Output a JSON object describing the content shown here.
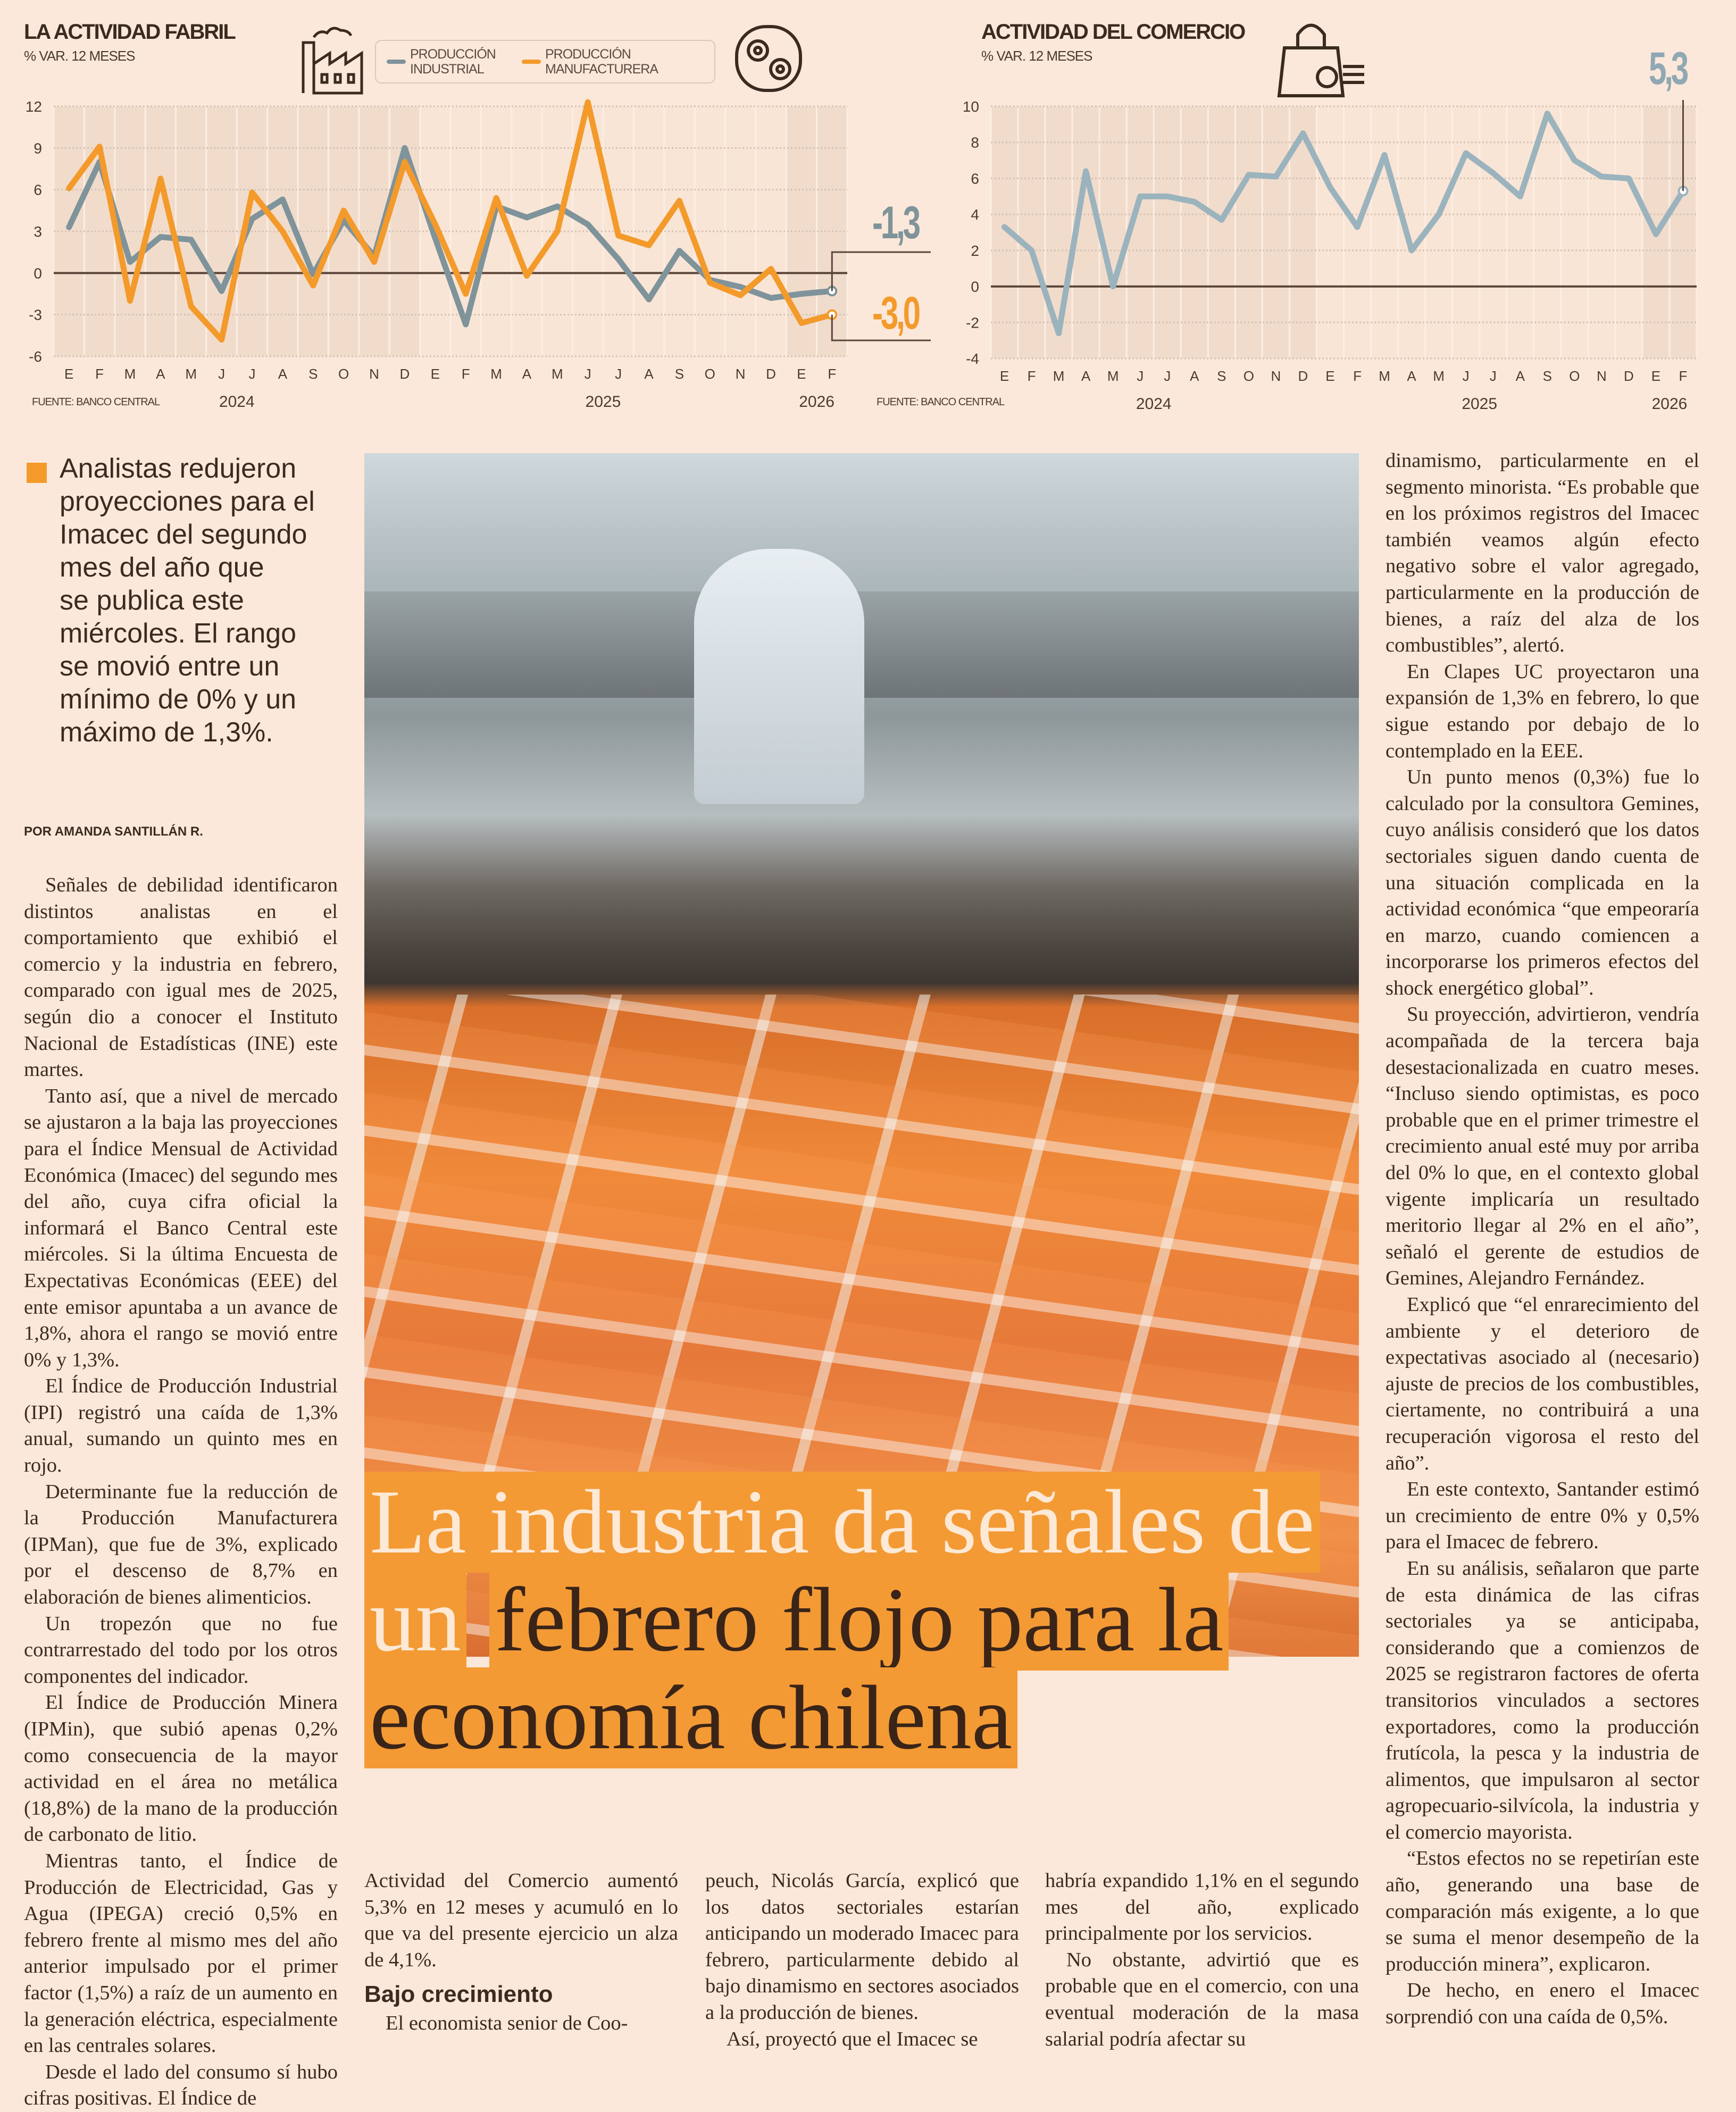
{
  "chart_data": [
    {
      "type": "line",
      "title": "LA ACTIVIDAD FABRIL",
      "subtitle": "% VAR. 12 MESES",
      "x_labels": [
        "E",
        "F",
        "M",
        "A",
        "M",
        "J",
        "J",
        "A",
        "S",
        "O",
        "N",
        "D",
        "E",
        "F",
        "M",
        "A",
        "M",
        "J",
        "J",
        "A",
        "S",
        "O",
        "N",
        "D",
        "E",
        "F"
      ],
      "years": [
        {
          "label": "2024",
          "from": 0,
          "to": 11
        },
        {
          "label": "2025",
          "from": 12,
          "to": 23
        },
        {
          "label": "2026",
          "from": 24,
          "to": 25
        }
      ],
      "ylim": [
        -6,
        12
      ],
      "yticks": [
        -6,
        -3,
        0,
        3,
        6,
        9,
        12
      ],
      "grid": true,
      "legend": "top",
      "series": [
        {
          "name": "PRODUCCIÓN INDUSTRIAL",
          "color": "#7f939a",
          "values": [
            3.3,
            8.0,
            0.8,
            2.6,
            2.4,
            -1.3,
            3.9,
            5.3,
            -0.1,
            3.8,
            1.2,
            9.0,
            2.5,
            -3.7,
            4.8,
            4.0,
            4.8,
            3.5,
            1.0,
            -1.9,
            1.6,
            -0.5,
            -1.0,
            -1.8,
            -1.5,
            -1.3
          ]
        },
        {
          "name": "PRODUCCIÓN MANUFACTURERA",
          "color": "#f39a2b",
          "values": [
            6.1,
            9.1,
            -2.0,
            6.8,
            -2.4,
            -4.8,
            5.8,
            3.0,
            -0.9,
            4.5,
            0.8,
            8.0,
            3.5,
            -1.5,
            5.4,
            -0.2,
            3.0,
            12.3,
            2.7,
            2.0,
            5.2,
            -0.7,
            -1.6,
            0.3,
            -3.6,
            -3.0
          ]
        }
      ],
      "annotations": [
        "-1,3",
        "-3,0"
      ],
      "source": "FUENTE: BANCO CENTRAL"
    },
    {
      "type": "line",
      "title": "ACTIVIDAD DEL COMERCIO",
      "subtitle": "% VAR. 12 MESES",
      "x_labels": [
        "E",
        "F",
        "M",
        "A",
        "M",
        "J",
        "J",
        "A",
        "S",
        "O",
        "N",
        "D",
        "E",
        "F",
        "M",
        "A",
        "M",
        "J",
        "J",
        "A",
        "S",
        "O",
        "N",
        "D",
        "E",
        "F"
      ],
      "years": [
        {
          "label": "2024",
          "from": 0,
          "to": 11
        },
        {
          "label": "2025",
          "from": 12,
          "to": 23
        },
        {
          "label": "2026",
          "from": 24,
          "to": 25
        }
      ],
      "ylim": [
        -4,
        10
      ],
      "yticks": [
        -4,
        -2,
        0,
        2,
        4,
        6,
        8,
        10
      ],
      "grid": true,
      "series": [
        {
          "color": "#9bb3bd",
          "values": [
            3.3,
            2.0,
            -2.6,
            6.4,
            0.0,
            5.0,
            5.0,
            4.7,
            3.7,
            6.2,
            6.1,
            8.5,
            5.5,
            3.3,
            7.3,
            2.0,
            4.0,
            7.4,
            6.3,
            5.0,
            9.6,
            7.0,
            6.1,
            6.0,
            2.9,
            5.3
          ]
        }
      ],
      "annotations": [
        "5,3"
      ],
      "source": "FUENTE: BANCO CENTRAL"
    }
  ],
  "colors": {
    "accent": "#f39a2b",
    "industrial": "#7f939a",
    "commerce": "#9bb3bd",
    "background": "#fbe8da"
  },
  "icons": [
    "factory-icon",
    "gear-icon",
    "shopping-bag-icon"
  ],
  "quote": {
    "lines": [
      "Analistas redujeron",
      "proyecciones para el",
      "Imacec del segundo",
      "mes del año que",
      "se publica este",
      "miércoles. El rango",
      "se movió entre un",
      "mínimo de 0% y un",
      "máximo de 1,3%."
    ]
  },
  "byline": "POR AMANDA SANTILLÁN R.",
  "headline": {
    "part1": "La industria da señales de un",
    "part2": "febrero flojo para la economía chilena"
  },
  "columns": {
    "col1": [
      "Señales de debilidad identificaron distintos analistas en el comportamiento que exhibió el comercio y la industria en febrero, comparado con igual mes de 2025, según dio a conocer el Instituto Nacional de Estadísticas (INE) este martes.",
      "Tanto así, que a nivel de mercado se ajustaron a la baja las proyecciones para el Índice Mensual de Actividad Económica (Imacec) del segundo mes del año, cuya cifra oficial la informará el Banco Central este miércoles. Si la última Encuesta de Expectativas Económicas (EEE) del ente emisor apuntaba a un avance de 1,8%, ahora el rango se movió entre 0% y 1,3%.",
      "El Índice de Producción Industrial (IPI) registró una caída de 1,3% anual, sumando un quinto mes en rojo.",
      "Determinante fue la reducción de la Producción Manufacturera (IPMan), que fue de 3%, explicado por el descenso de 8,7% en elaboración de bienes alimenticios.",
      "Un tropezón que no fue contrarrestado del todo por los otros componentes del indicador.",
      "El Índice de Producción Minera (IPMin), que subió apenas 0,2% como consecuencia de la mayor actividad en el área no metálica (18,8%) de la mano de la producción de carbonato de litio.",
      "Mientras tanto, el Índice de Producción de Electricidad, Gas y Agua (IPEGA) creció 0,5% en febrero frente al mismo mes del año anterior impulsado por el primer factor (1,5%) a raíz de un aumento en la generación eléctrica, especialmente en las centrales solares.",
      "Desde el lado del consumo sí hubo cifras positivas. El Índice de"
    ],
    "col2_cont": "Actividad del Comercio aumentó 5,3% en 12 meses y acumuló en lo que va del presente ejercicio un alza de 4,1%.",
    "col2_subhead": "Bajo crecimiento",
    "col2_p": "El economista senior de Coo-",
    "col3_cont": "peuch, Nicolás García, explicó que los datos sectoriales estarían anticipando un moderado Imacec para febrero, particularmente debido al bajo dinamismo en sectores asociados a la producción de bienes.",
    "col3_p": "Así, proyectó que el Imacec se",
    "col4_cont": "habría expandido 1,1% en el segundo mes del año, explicado principalmente por los servicios.",
    "col4_p": "No obstante, advirtió que es probable que en el comercio, con una eventual moderación de la masa salarial podría afectar su",
    "col5": [
      "dinamismo, particularmente en el segmento minorista. “Es probable que en los próximos registros del Imacec también veamos algún efecto negativo sobre el valor agregado, particularmente en la producción de bienes, a raíz del alza de los combustibles”, alertó.",
      "En Clapes UC proyectaron una expansión de 1,3% en febrero, lo que sigue estando por debajo de lo contemplado en la EEE.",
      "Un punto menos (0,3%) fue lo calculado por la consultora Gemines, cuyo análisis consideró que los datos sectoriales siguen dando cuenta de una situación complicada en la actividad económica “que empeoraría en marzo, cuando comiencen a incorporarse los primeros efectos del shock energético global”.",
      "Su proyección, advirtieron, vendría acompañada de la tercera baja desestacionalizada en cuatro meses. “Incluso siendo optimistas, es poco probable que en el primer trimestre el crecimiento anual esté muy por arriba del 0% lo que, en el contexto global vigente implicaría un resultado meritorio llegar al 2% en el año”, señaló el gerente de estudios de Gemines, Alejandro Fernández.",
      "Explicó que “el enrarecimiento del ambiente y el deterioro de expectativas asociado al (necesario) ajuste de precios de los combustibles, ciertamente, no contribuirá a una recuperación vigorosa el resto del año”.",
      "En este contexto, Santander estimó un crecimiento de entre 0% y 0,5% para el Imacec de febrero.",
      "En su análisis, señalaron que parte de esta dinámica de las cifras sectoriales ya se anticipaba, considerando que a comienzos de 2025 se registraron factores de oferta transitorios vinculados a sectores exportadores, como la producción frutícola, la pesca y la industria de alimentos, que impulsaron al sector agropecuario-silvícola, la industria y el comercio mayorista.",
      "“Estos efectos no se repetirían este año, generando una base de comparación más exigente, a lo que se suma el menor desempeño de la producción minera”, explicaron.",
      "De hecho, en enero el Imacec sorprendió con una caída de 0,5%."
    ]
  }
}
